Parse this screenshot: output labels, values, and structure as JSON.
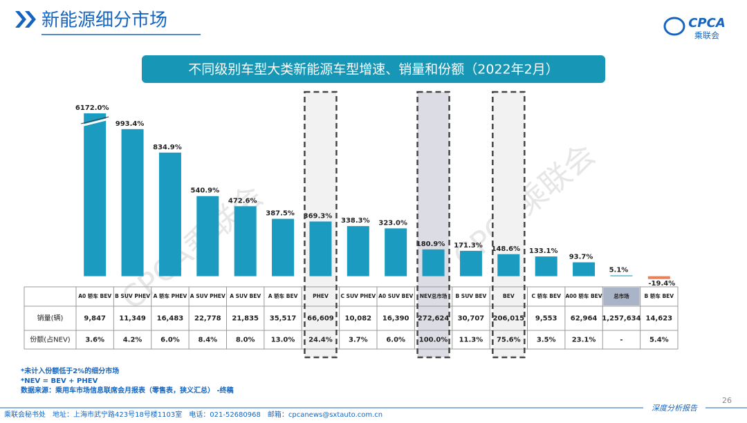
{
  "header": {
    "title": "新能源细分市场",
    "logo": "CPCA",
    "logo_sub": "乘联会"
  },
  "chart_data": {
    "type": "bar",
    "title": "不同级别车型大类新能源车型增速、销量和份额（2022年2月）",
    "categories": [
      "A0 轿车 BEV",
      "B SUV PHEV",
      "A 轿车 PHEV",
      "A SUV PHEV",
      "A SUV BEV",
      "A 轿车 BEV",
      "PHEV",
      "C SUV PHEV",
      "A0 SUV BEV",
      "NEV总市场",
      "B SUV BEV",
      "BEV",
      "C 轿车 BEV",
      "A00 轿车 BEV",
      "总市场",
      "B 轿车 BEV"
    ],
    "values": [
      6172.0,
      993.4,
      834.9,
      540.9,
      472.6,
      387.5,
      369.3,
      338.3,
      323.0,
      180.9,
      171.3,
      148.6,
      133.1,
      93.7,
      5.1,
      -19.4
    ],
    "value_labels": [
      "6172.0%",
      "993.4%",
      "834.9%",
      "540.9%",
      "472.6%",
      "387.5%",
      "369.3%",
      "338.3%",
      "323.0%",
      "180.9%",
      "171.3%",
      "148.6%",
      "133.1%",
      "93.7%",
      "5.1%",
      "-19.4%"
    ],
    "color": "#1a9bbf",
    "negative_color": "#e8825a",
    "ylim": [
      -30,
      1100
    ],
    "axis_break": true,
    "highlight_columns": [
      6,
      9,
      11
    ],
    "shaded_column": 9,
    "shaded_header": 14
  },
  "table": {
    "rows": [
      {
        "label": "销量(辆)",
        "values": [
          "9,847",
          "11,349",
          "16,483",
          "22,778",
          "21,835",
          "35,517",
          "66,609",
          "10,082",
          "16,390",
          "272,624",
          "30,707",
          "206,015",
          "9,553",
          "62,964",
          "1,257,634",
          "14,623"
        ]
      },
      {
        "label": "份额(占NEV)",
        "values": [
          "3.6%",
          "4.2%",
          "6.0%",
          "8.4%",
          "8.0%",
          "13.0%",
          "24.4%",
          "3.7%",
          "6.0%",
          "100.0%",
          "11.3%",
          "75.6%",
          "3.5%",
          "23.1%",
          "-",
          "5.4%"
        ]
      }
    ]
  },
  "watermark": "CPCA乘联会",
  "notes": [
    "*未计入份额低于2%的细分市场",
    "*NEV = BEV + PHEV",
    "数据来源：乘用车市场信息联席会月报表（零售表，狭义汇总）  -终稿"
  ],
  "page_number": "26",
  "footer": "乘联会秘书处　地址：上海市武宁路423号18号楼1103室　电话：021-52680968　邮箱：cpcanews@sxtauto.com.cn",
  "footer_tag": "深度分析报告"
}
